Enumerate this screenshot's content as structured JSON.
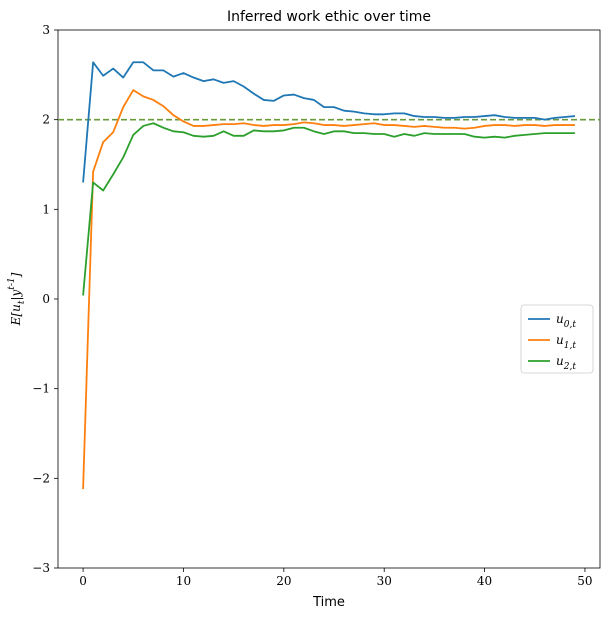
{
  "chart_data": {
    "type": "line",
    "title": "Inferred work ethic over time",
    "xlabel": "Time",
    "ylabel": "E[u_t|y^{t-1}]",
    "xlim": [
      -2.5,
      51.5
    ],
    "ylim": [
      -3,
      3
    ],
    "xticks": [
      0,
      10,
      20,
      30,
      40,
      50
    ],
    "yticks": [
      -3,
      -2,
      -1,
      0,
      1,
      2,
      3
    ],
    "xtick_labels": [
      "0",
      "10",
      "20",
      "30",
      "40",
      "50"
    ],
    "ytick_labels": [
      "−3",
      "−2",
      "−1",
      "0",
      "1",
      "2",
      "3"
    ],
    "grid": false,
    "legend_position": "center-right",
    "reference_line": {
      "y": 2,
      "style": "dashed",
      "color": "#6b9a3e"
    },
    "x": [
      0,
      1,
      2,
      3,
      4,
      5,
      6,
      7,
      8,
      9,
      10,
      11,
      12,
      13,
      14,
      15,
      16,
      17,
      18,
      19,
      20,
      21,
      22,
      23,
      24,
      25,
      26,
      27,
      28,
      29,
      30,
      31,
      32,
      33,
      34,
      35,
      36,
      37,
      38,
      39,
      40,
      41,
      42,
      43,
      44,
      45,
      46,
      47,
      48,
      49
    ],
    "series": [
      {
        "name": "u_{0,t}",
        "color": "#1f77b4",
        "values": [
          1.3,
          2.64,
          2.49,
          2.57,
          2.47,
          2.64,
          2.64,
          2.55,
          2.55,
          2.48,
          2.52,
          2.47,
          2.43,
          2.45,
          2.41,
          2.43,
          2.37,
          2.29,
          2.22,
          2.21,
          2.27,
          2.28,
          2.24,
          2.22,
          2.14,
          2.14,
          2.1,
          2.09,
          2.07,
          2.06,
          2.06,
          2.07,
          2.07,
          2.04,
          2.03,
          2.03,
          2.02,
          2.02,
          2.03,
          2.03,
          2.04,
          2.05,
          2.03,
          2.02,
          2.02,
          2.02,
          2.0,
          2.02,
          2.03,
          2.04
        ]
      },
      {
        "name": "u_{1,t}",
        "color": "#ff7f0e",
        "values": [
          -2.12,
          1.42,
          1.75,
          1.86,
          2.14,
          2.33,
          2.26,
          2.22,
          2.15,
          2.05,
          1.98,
          1.93,
          1.93,
          1.94,
          1.95,
          1.95,
          1.96,
          1.94,
          1.93,
          1.94,
          1.94,
          1.95,
          1.97,
          1.96,
          1.94,
          1.94,
          1.93,
          1.94,
          1.95,
          1.96,
          1.94,
          1.94,
          1.93,
          1.92,
          1.93,
          1.92,
          1.91,
          1.91,
          1.9,
          1.91,
          1.93,
          1.94,
          1.94,
          1.93,
          1.94,
          1.94,
          1.93,
          1.94,
          1.94,
          1.94
        ]
      },
      {
        "name": "u_{2,t}",
        "color": "#2ca02c",
        "values": [
          0.04,
          1.3,
          1.21,
          1.39,
          1.58,
          1.83,
          1.93,
          1.96,
          1.91,
          1.87,
          1.86,
          1.82,
          1.81,
          1.82,
          1.87,
          1.82,
          1.82,
          1.88,
          1.87,
          1.87,
          1.88,
          1.91,
          1.91,
          1.87,
          1.84,
          1.87,
          1.87,
          1.85,
          1.85,
          1.84,
          1.84,
          1.81,
          1.84,
          1.82,
          1.85,
          1.84,
          1.84,
          1.84,
          1.84,
          1.81,
          1.8,
          1.81,
          1.8,
          1.82,
          1.83,
          1.84,
          1.85,
          1.85,
          1.85,
          1.85
        ]
      }
    ]
  }
}
